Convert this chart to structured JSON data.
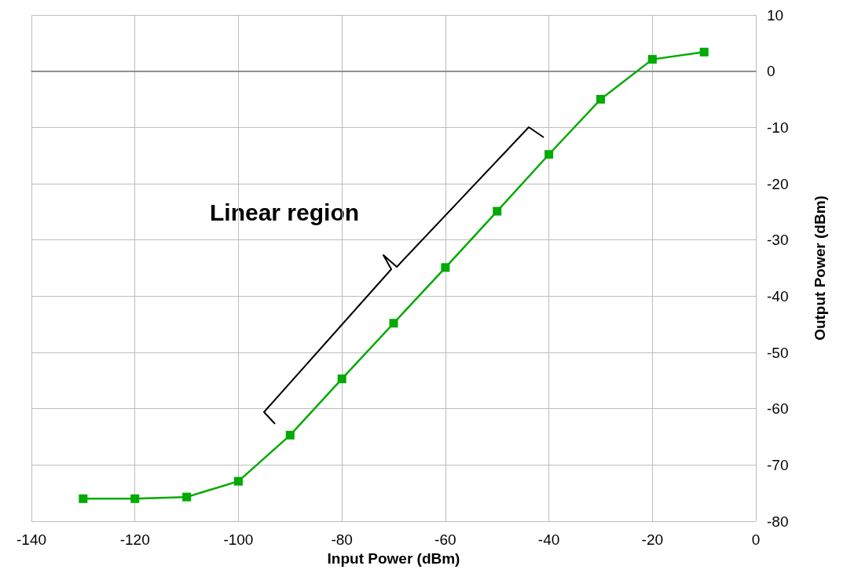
{
  "chart_data": {
    "type": "line",
    "xlabel": "Input Power (dBm)",
    "ylabel": "Output Power (dBm)",
    "x": [
      -130,
      -120,
      -110,
      -100,
      -90,
      -80,
      -70,
      -60,
      -50,
      -40,
      -30,
      -20,
      -10
    ],
    "series": [
      {
        "color": "#00aa00",
        "values": [
          -76,
          -76,
          -75.7,
          -72.9,
          -64.7,
          -54.7,
          -44.8,
          -34.9,
          -24.9,
          -14.8,
          -5,
          2.1,
          3.4
        ]
      }
    ],
    "xlim": [
      -140,
      0
    ],
    "xticks": [
      -140,
      -120,
      -100,
      -80,
      -60,
      -40,
      -20,
      0
    ],
    "ylim": [
      -80,
      10
    ],
    "yticks": [
      -80,
      -70,
      -60,
      -50,
      -40,
      -30,
      -20,
      -10,
      0,
      10
    ],
    "grid": true,
    "marker": "square",
    "line_style": "solid",
    "annotations": [
      "Linear region"
    ]
  }
}
